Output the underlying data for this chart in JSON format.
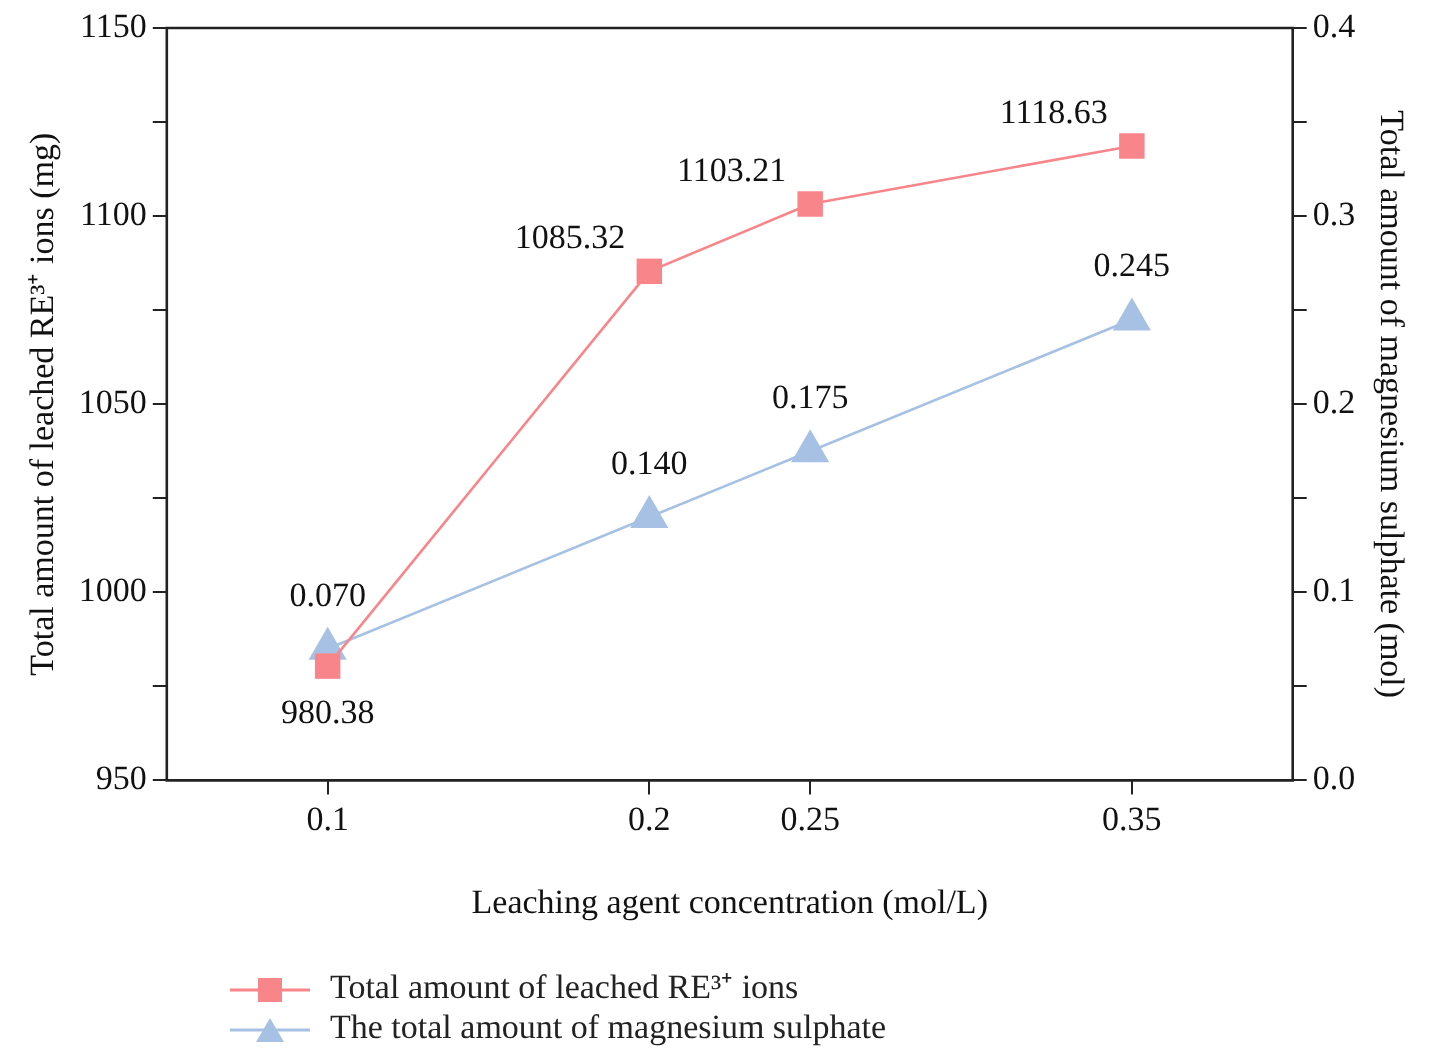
{
  "chart_data": {
    "type": "line",
    "xlabel": "Leaching agent concentration (mol/L)",
    "ylabel": "Total amount of leached RE³⁺ ions (mg)",
    "y2label": "Total amount of magnesium sulphate (mol)",
    "x": [
      0.1,
      0.2,
      0.25,
      0.35
    ],
    "xlim": [
      0.05,
      0.4
    ],
    "xticks": [
      0.1,
      0.2,
      0.25,
      0.35
    ],
    "ylim": [
      950,
      1150
    ],
    "yticks": [
      950,
      {
        "value": 975,
        "label": null
      },
      1000,
      {
        "value": 1025,
        "label": null
      },
      1050,
      {
        "value": 1075,
        "label": null
      },
      1100,
      {
        "value": 1125,
        "label": null
      },
      1150
    ],
    "y2lim": [
      0,
      0.4
    ],
    "y2ticks": [
      {
        "value": 0,
        "label": "0.0"
      },
      {
        "value": 0.05,
        "label": null
      },
      0.1,
      {
        "value": 0.15,
        "label": null
      },
      0.2,
      {
        "value": 0.25,
        "label": null
      },
      0.3,
      {
        "value": 0.35,
        "label": null
      },
      0.4
    ],
    "series": [
      {
        "name": "Total amount of leached RE³⁺ ions",
        "color": "#f8858a",
        "marker": "square",
        "values": [
          980.38,
          1085.32,
          1103.21,
          1118.63
        ],
        "value_labels": [
          "980.38",
          "1085.32",
          "1103.21",
          "1118.63"
        ]
      },
      {
        "name": "The total amount of magnesium sulphate",
        "color": "#a6c1e3",
        "marker": "triangle",
        "axis": "y2",
        "values": [
          0.07,
          0.14,
          0.175,
          0.245
        ],
        "value_labels": [
          "0.070",
          "0.140",
          "0.175",
          "0.245"
        ]
      }
    ],
    "grid": false,
    "legend": "bottom",
    "line_style": "solid"
  }
}
